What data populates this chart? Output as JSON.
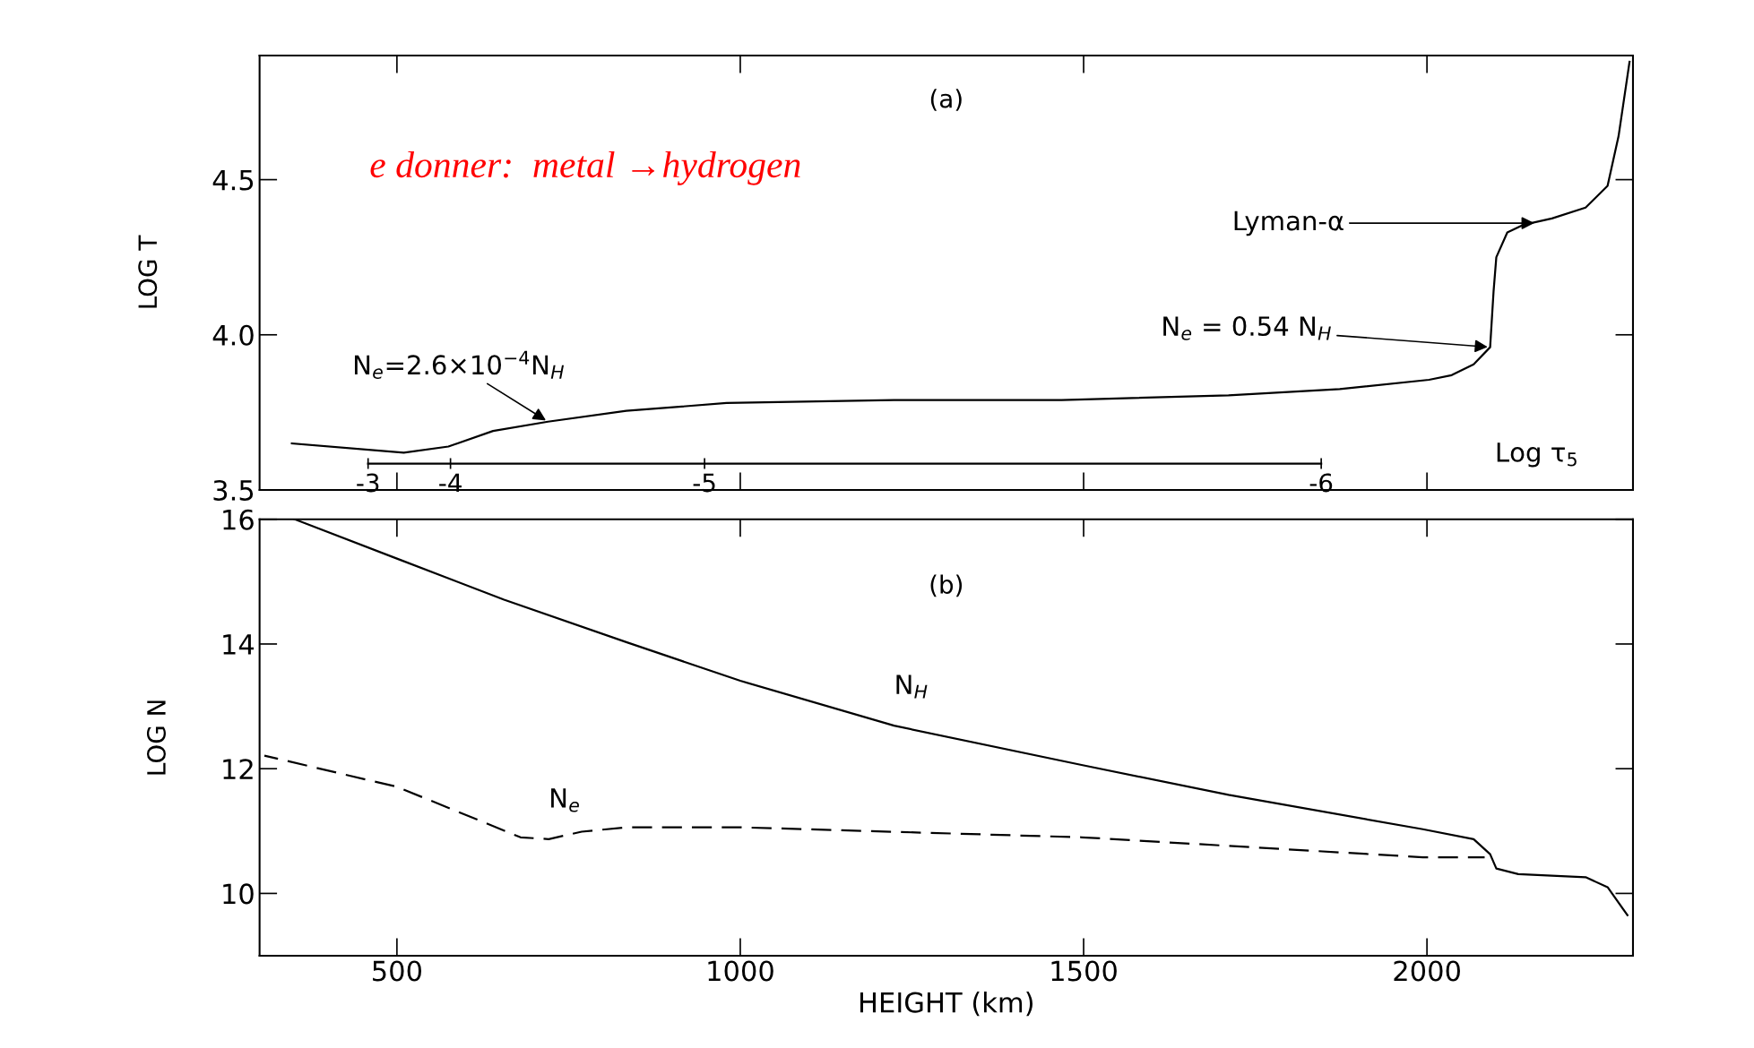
{
  "chart_data": [
    {
      "type": "line",
      "ylabel": "LOG T",
      "xlim": [
        300,
        2300
      ],
      "ylim": [
        3.5,
        4.9
      ],
      "xticks": [
        500,
        1000,
        1500,
        2000
      ],
      "yticks": [
        {
          "value": 3.5,
          "label": "3.5"
        },
        {
          "value": 4.0,
          "label": "4.0"
        },
        {
          "value": 4.5,
          "label": "4.5"
        }
      ],
      "tick_labels": "y",
      "series": [
        {
          "color": "#000000",
          "x": [
            347,
            510,
            575,
            640,
            720,
            834,
            980,
            1224,
            1468,
            1711,
            1873,
            2003,
            2036,
            2068,
            2092,
            2097,
            2101,
            2117,
            2141,
            2182,
            2231,
            2263,
            2279,
            2295
          ],
          "values": [
            3.65,
            3.62,
            3.64,
            3.69,
            3.72,
            3.755,
            3.78,
            3.79,
            3.79,
            3.805,
            3.825,
            3.855,
            3.87,
            3.905,
            3.96,
            4.14,
            4.25,
            4.33,
            4.355,
            4.375,
            4.41,
            4.48,
            4.64,
            4.88
          ]
        },
        {
          "color": "#000000",
          "x": [
            458,
            1846
          ],
          "values": [
            3.585,
            3.585
          ]
        }
      ],
      "annotations": [
        "(a)",
        "e donner:  metal →hydrogen",
        {
          "text": "N$_{e}$=2.6×10$^{−4}$N$_{H}$",
          "x": 720,
          "y": 3.72
        },
        {
          "text": "N$_{e}$ = 0.54 N$_{H}$",
          "x": 2092,
          "y": 3.96
        },
        {
          "text": "Lyman-α",
          "x": 2160,
          "y": 4.36
        },
        {
          "text": "-3",
          "x": 458,
          "y": 3.585
        },
        {
          "text": "-4",
          "x": 578,
          "y": 3.585
        },
        {
          "text": "-5",
          "x": 948,
          "y": 3.585
        },
        {
          "text": "-6",
          "x": 1846,
          "y": 3.585
        },
        "Log τ$_{5}$"
      ]
    },
    {
      "type": "line",
      "xlabel": "HEIGHT (km)",
      "ylabel": "LOG N",
      "xlim": [
        300,
        2300
      ],
      "ylim": [
        9,
        16
      ],
      "xticks": [
        500,
        1000,
        1500,
        2000
      ],
      "yticks": [
        10,
        12,
        14,
        16
      ],
      "series": [
        {
          "name": "N$_{H}$",
          "color": "#000000",
          "line_style": "solid",
          "x": [
            351,
            500,
            656,
            834,
            1000,
            1224,
            1497,
            1711,
            1994,
            2068,
            2092,
            2101,
            2133,
            2231,
            2263,
            2292
          ],
          "values": [
            16.0,
            15.37,
            14.71,
            14.03,
            13.41,
            12.69,
            12.06,
            11.58,
            11.03,
            10.87,
            10.63,
            10.4,
            10.31,
            10.26,
            10.1,
            9.65
          ]
        },
        {
          "name": "N$_{e}$",
          "color": "#000000",
          "line_style": "dashed",
          "x": [
            307,
            500,
            680,
            721,
            769,
            834,
            1000,
            1497,
            1994,
            2084
          ],
          "values": [
            12.21,
            11.71,
            10.9,
            10.87,
            10.99,
            11.06,
            11.06,
            10.9,
            10.58,
            10.58
          ]
        }
      ],
      "annotations": [
        "(b)"
      ]
    }
  ]
}
